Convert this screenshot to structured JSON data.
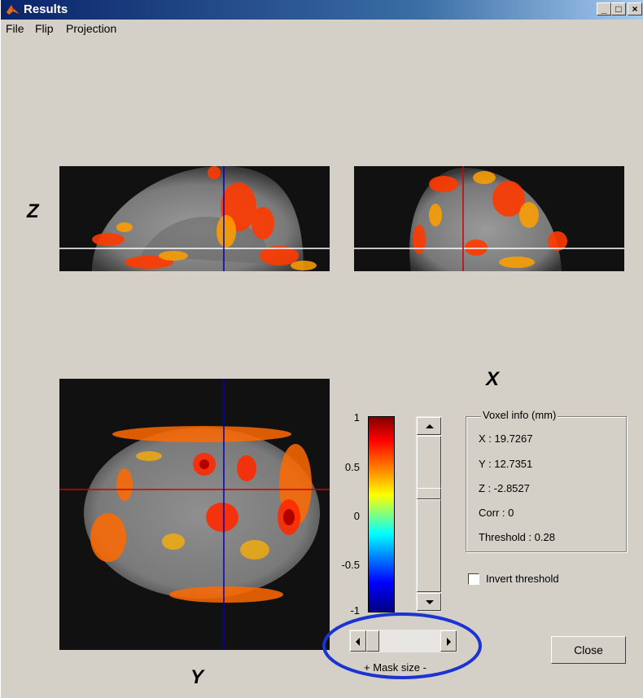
{
  "window": {
    "title": "Results",
    "minimize_glyph": "_",
    "maximize_glyph": "□",
    "close_glyph": "×"
  },
  "menu": {
    "items": [
      "File",
      "Flip",
      "Projection"
    ]
  },
  "views": {
    "z_label": "Z",
    "x_label": "X",
    "y_label": "Y",
    "line_colors": {
      "horizontal": "#ffffff",
      "blue": "#0000c0",
      "red": "#d00000"
    }
  },
  "colorbar": {
    "ticks": [
      "1",
      "0.5",
      "0",
      "-0.5",
      "-1"
    ],
    "colormap": "jet"
  },
  "voxel_info": {
    "title": "Voxel info (mm)",
    "x": "X : 19.7267",
    "y": "Y : 12.7351",
    "z": "Z : -2.8527",
    "corr": "Corr : 0",
    "threshold": "Threshold :  0.28"
  },
  "invert_threshold": {
    "label": "Invert threshold",
    "checked": false
  },
  "mask_size": {
    "label": "+ Mask size -"
  },
  "close_button": {
    "label": "Close"
  },
  "annotation_color": "#1a33d1"
}
